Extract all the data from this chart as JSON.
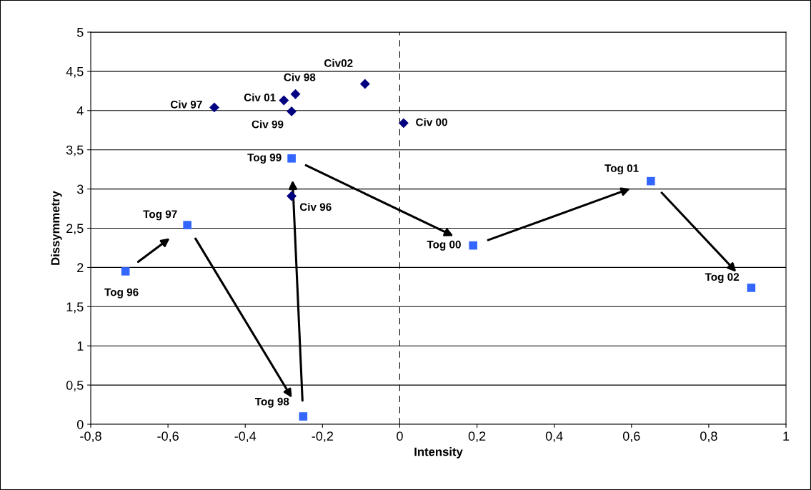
{
  "chart_data": {
    "type": "scatter",
    "xlabel": "Intensity",
    "ylabel": "Dissymmetry",
    "xlim": [
      -0.8,
      1
    ],
    "ylim": [
      0,
      5
    ],
    "xticks": [
      {
        "value": -0.8,
        "label": "-0,8"
      },
      {
        "value": -0.6,
        "label": "-0,6"
      },
      {
        "value": -0.4,
        "label": "-0,4"
      },
      {
        "value": -0.2,
        "label": "-0,2"
      },
      0,
      {
        "value": 0.2,
        "label": "0,2"
      },
      {
        "value": 0.4,
        "label": "0,4"
      },
      {
        "value": 0.6,
        "label": "0,6"
      },
      {
        "value": 0.8,
        "label": "0,8"
      },
      1
    ],
    "yticks": [
      0,
      {
        "value": 0.5,
        "label": "0,5"
      },
      1,
      {
        "value": 1.5,
        "label": "1,5"
      },
      2,
      {
        "value": 2.5,
        "label": "2,5"
      },
      3,
      {
        "value": 3.5,
        "label": "3,5"
      },
      4,
      {
        "value": 4.5,
        "label": "4,5"
      },
      5
    ],
    "grid": "y",
    "legend": false,
    "ref_lines": [
      {
        "axis": "x",
        "value": 0,
        "label": null,
        "color": "#000000",
        "line_style": "dashed"
      }
    ],
    "series": [
      {
        "marker": "diamond",
        "color": "#000080",
        "x": [
          -0.48,
          -0.3,
          -0.27,
          -0.28,
          -0.09,
          0.01,
          -0.28
        ],
        "values": [
          4.04,
          4.13,
          4.21,
          3.99,
          4.34,
          3.84,
          2.91
        ],
        "value_labels": [
          "Civ 97",
          "Civ 01",
          "Civ 98",
          "Civ 99",
          "Civ02",
          "Civ 00",
          "Civ 96"
        ]
      },
      {
        "marker": "square",
        "color": "#3366ff",
        "x": [
          -0.71,
          -0.55,
          -0.25,
          -0.28,
          0.19,
          0.65,
          0.91
        ],
        "values": [
          1.95,
          2.54,
          0.1,
          3.39,
          2.28,
          3.1,
          1.74
        ],
        "value_labels": [
          "Tog 96",
          "Tog 97",
          "Tog 98",
          "Tog 99",
          "Tog 00",
          "Tog 01",
          "Tog 02"
        ]
      }
    ]
  }
}
